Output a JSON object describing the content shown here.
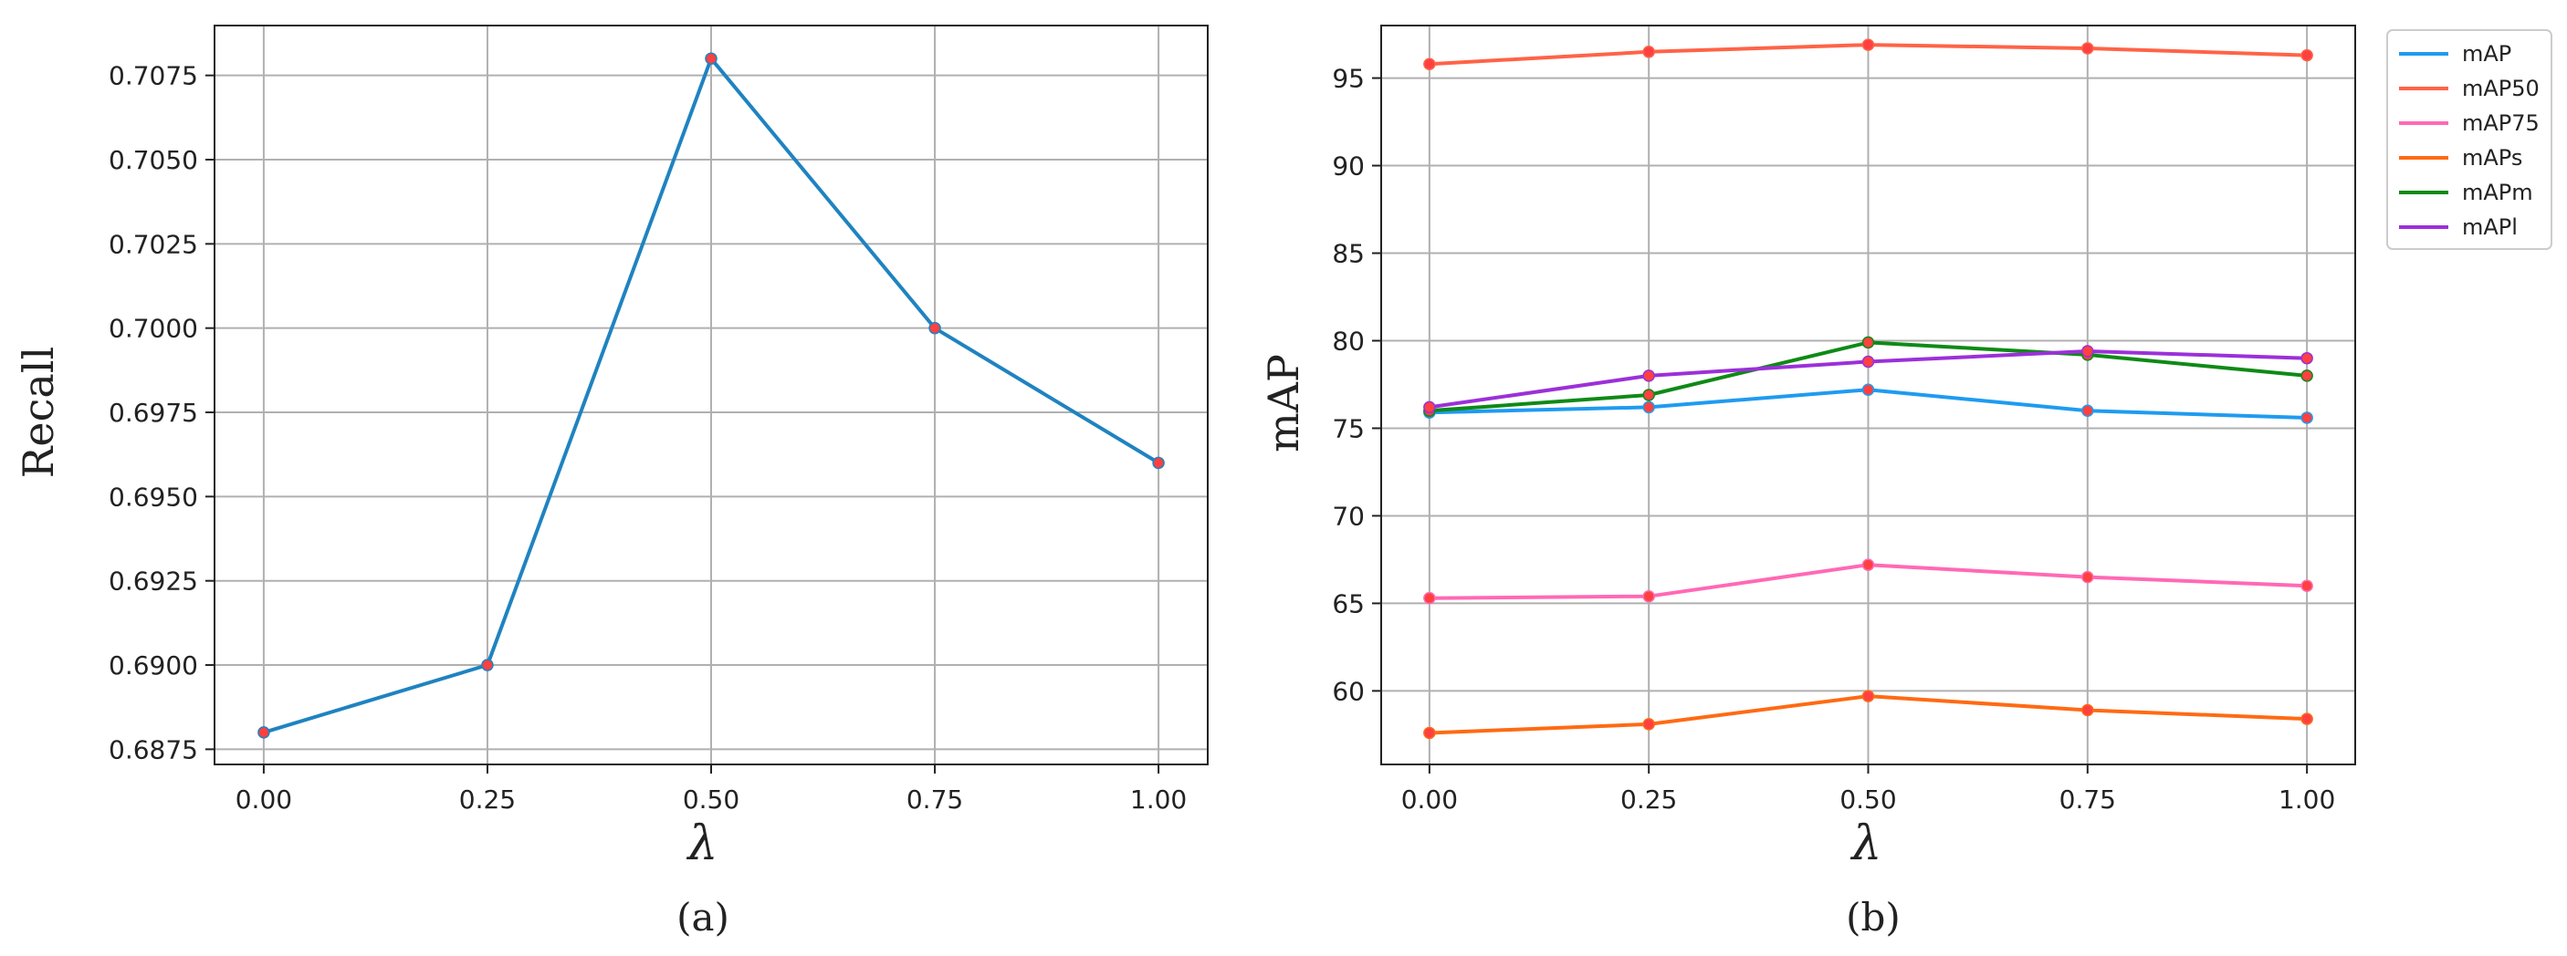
{
  "chart_data": [
    {
      "type": "line",
      "caption": "(a)",
      "xlabel": "λ",
      "ylabel": "Recall",
      "x": [
        0.0,
        0.25,
        0.5,
        0.75,
        1.0
      ],
      "x_tick_labels": [
        "0.00",
        "0.25",
        "0.50",
        "0.75",
        "1.00"
      ],
      "y_tick_labels": [
        "0.6875",
        "0.6900",
        "0.6925",
        "0.6950",
        "0.6975",
        "0.7000",
        "0.7025",
        "0.7050",
        "0.7075"
      ],
      "y_ticks": [
        0.6875,
        0.69,
        0.6925,
        0.695,
        0.6975,
        0.7,
        0.7025,
        0.705,
        0.7075
      ],
      "xlim": [
        -0.055,
        1.055
      ],
      "ylim": [
        0.68705,
        0.70898
      ],
      "grid": true,
      "series": [
        {
          "values": [
            0.688,
            0.69,
            0.708,
            0.7,
            0.696
          ],
          "color": "#1f83c0"
        }
      ],
      "marker_color": "#ff4040"
    },
    {
      "type": "line",
      "caption": "(b)",
      "xlabel": "λ",
      "ylabel": "mAP",
      "x": [
        0.0,
        0.25,
        0.5,
        0.75,
        1.0
      ],
      "x_tick_labels": [
        "0.00",
        "0.25",
        "0.50",
        "0.75",
        "1.00"
      ],
      "y_tick_labels": [
        "60",
        "65",
        "70",
        "75",
        "80",
        "85",
        "90",
        "95"
      ],
      "y_ticks": [
        60,
        65,
        70,
        75,
        80,
        85,
        90,
        95
      ],
      "xlim": [
        -0.055,
        1.055
      ],
      "ylim": [
        55.8,
        98.0
      ],
      "grid": true,
      "legend_position": "outside-top-right",
      "series": [
        {
          "name": "mAP",
          "values": [
            75.9,
            76.2,
            77.2,
            76.0,
            75.6
          ],
          "color": "#1f9bf0"
        },
        {
          "name": "mAP50",
          "values": [
            95.8,
            96.5,
            96.9,
            96.7,
            96.3
          ],
          "color": "#ff6347"
        },
        {
          "name": "mAP75",
          "values": [
            65.3,
            65.4,
            67.2,
            66.5,
            66.0
          ],
          "color": "#ff69b4"
        },
        {
          "name": "mAPs",
          "values": [
            57.6,
            58.1,
            59.7,
            58.9,
            58.4
          ],
          "color": "#ff6a13"
        },
        {
          "name": "mAPm",
          "values": [
            76.0,
            76.9,
            79.9,
            79.2,
            78.0
          ],
          "color": "#0e8a16"
        },
        {
          "name": "mAPl",
          "values": [
            76.2,
            78.0,
            78.8,
            79.4,
            79.0
          ],
          "color": "#9b30d9"
        }
      ],
      "marker_color": "#ff4040"
    }
  ]
}
